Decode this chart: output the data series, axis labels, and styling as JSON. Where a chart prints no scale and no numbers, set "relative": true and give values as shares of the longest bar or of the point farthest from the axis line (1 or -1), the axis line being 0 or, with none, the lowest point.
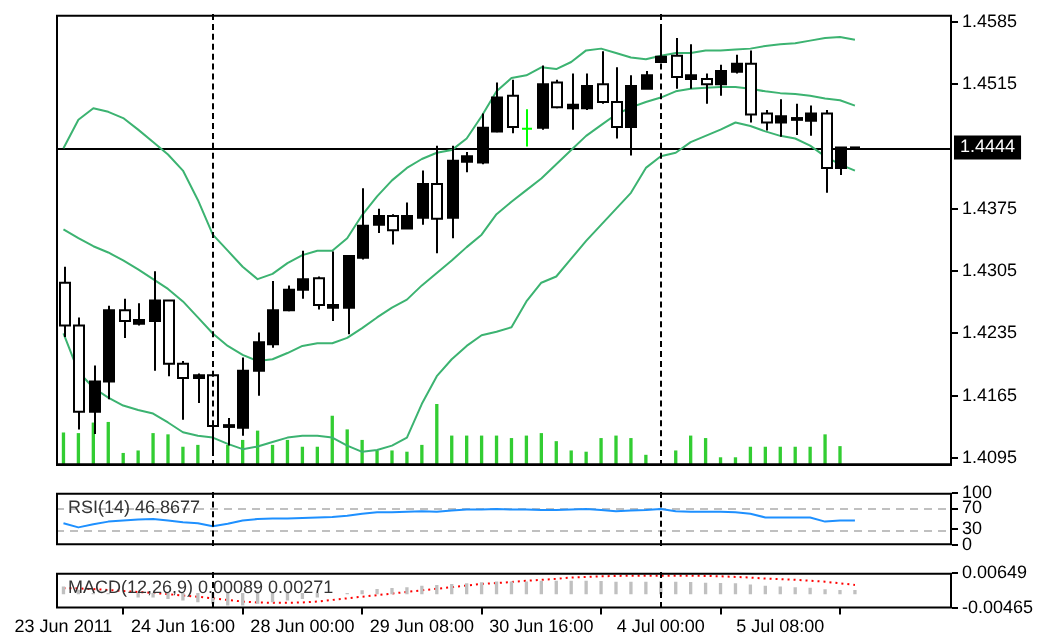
{
  "chart_data": [
    {
      "type": "candlestick",
      "categories": [
        null,
        null,
        null,
        null,
        null,
        null,
        null,
        null,
        null,
        null,
        null,
        null,
        null,
        null,
        null,
        null,
        null,
        null,
        null,
        null,
        null,
        null,
        null,
        null,
        null,
        null,
        null,
        null,
        null,
        null,
        null,
        null,
        null,
        null,
        null,
        null,
        null,
        null,
        null,
        null,
        null,
        null,
        null,
        null,
        null,
        null,
        null,
        null,
        null,
        null,
        null,
        null,
        null,
        null
      ],
      "series": [
        {
          "ohlc": [
            [
              1.4292,
              1.431,
              1.4231,
              1.4244
            ],
            [
              1.4244,
              1.4253,
              1.4127,
              1.4147
            ],
            [
              1.4147,
              1.4199,
              1.4122,
              1.4181
            ],
            [
              1.4181,
              1.4266,
              1.4161,
              1.4261
            ],
            [
              1.4261,
              1.4274,
              1.423,
              1.4249
            ],
            [
              1.4246,
              1.4269,
              1.4244,
              1.425
            ],
            [
              1.4249,
              1.4305,
              1.4193,
              1.4272
            ],
            [
              1.4272,
              1.4272,
              1.4187,
              1.4201
            ],
            [
              1.4201,
              1.4204,
              1.4138,
              1.4185
            ],
            [
              1.4185,
              1.419,
              1.4157,
              1.4188
            ],
            [
              1.4188,
              1.4188,
              1.4099,
              1.4131
            ],
            [
              1.413,
              1.414,
              1.4109,
              1.4132
            ],
            [
              1.4129,
              1.4208,
              1.412,
              1.4193
            ],
            [
              1.4193,
              1.4236,
              1.4165,
              1.4225
            ],
            [
              1.4223,
              1.4294,
              1.4219,
              1.4261
            ],
            [
              1.4261,
              1.4289,
              1.426,
              1.4284
            ],
            [
              1.4284,
              1.4328,
              1.4274,
              1.4296
            ],
            [
              1.4297,
              1.4299,
              1.4262,
              1.4267
            ],
            [
              1.4264,
              1.4327,
              1.4249,
              1.4267
            ],
            [
              1.4264,
              1.4322,
              1.4234,
              1.4322
            ],
            [
              1.432,
              1.4398,
              1.4318,
              1.4356
            ],
            [
              1.4357,
              1.4375,
              1.4348,
              1.4367
            ],
            [
              1.4367,
              1.4369,
              1.4335,
              1.4351
            ],
            [
              1.4353,
              1.4382,
              1.4353,
              1.4367
            ],
            [
              1.4365,
              1.4418,
              1.4357,
              1.4403
            ],
            [
              1.4403,
              1.4446,
              1.4325,
              1.4364
            ],
            [
              1.4365,
              1.4446,
              1.4342,
              1.4429
            ],
            [
              1.4428,
              1.4439,
              1.4416,
              1.4434
            ],
            [
              1.4427,
              1.4482,
              1.4425,
              1.4466
            ],
            [
              1.4462,
              1.4517,
              1.4461,
              1.45
            ],
            [
              1.4502,
              1.452,
              1.446,
              1.4467
            ],
            [
              1.4465,
              1.4487,
              1.4445,
              1.4465
            ],
            [
              1.4466,
              1.4536,
              1.4464,
              1.4515
            ],
            [
              1.4517,
              1.452,
              1.4488,
              1.4489
            ],
            [
              1.4488,
              1.4527,
              1.4464,
              1.4492
            ],
            [
              1.4488,
              1.4527,
              1.4486,
              1.4513
            ],
            [
              1.4515,
              1.4552,
              1.4493,
              1.4495
            ],
            [
              1.4495,
              1.4534,
              1.4454,
              1.4467
            ],
            [
              1.4467,
              1.4525,
              1.4435,
              1.4513
            ],
            [
              1.451,
              1.453,
              1.451,
              1.4525
            ],
            [
              1.454,
              1.4581,
              1.454,
              1.4546
            ],
            [
              1.4547,
              1.4567,
              1.451,
              1.4523
            ],
            [
              1.4521,
              1.456,
              1.451,
              1.4525
            ],
            [
              1.4521,
              1.4527,
              1.4493,
              1.4515
            ],
            [
              1.4515,
              1.4537,
              1.4502,
              1.453
            ],
            [
              1.4529,
              1.4548,
              1.4527,
              1.4538
            ],
            [
              1.4538,
              1.4553,
              1.4472,
              1.4481
            ],
            [
              1.4482,
              1.4486,
              1.4463,
              1.4472
            ],
            [
              1.4472,
              1.4498,
              1.4456,
              1.4479
            ],
            [
              1.4475,
              1.4493,
              1.4458,
              1.4477
            ],
            [
              1.4474,
              1.4491,
              1.4457,
              1.4482
            ],
            [
              1.4482,
              1.4486,
              1.4393,
              1.4421
            ],
            [
              1.4421,
              1.4444,
              1.4413,
              1.4444
            ],
            [
              1.4444,
              1.4444,
              1.4444,
              1.4444
            ]
          ],
          "colors": [
            "#ffffff",
            "#ffffff",
            "#000000",
            "#000000",
            "#ffffff",
            "#000000",
            "#000000",
            "#ffffff",
            "#ffffff",
            "#000000",
            "#ffffff",
            "#000000",
            "#000000",
            "#000000",
            "#000000",
            "#000000",
            "#000000",
            "#ffffff",
            "#000000",
            "#000000",
            "#000000",
            "#000000",
            "#ffffff",
            "#000000",
            "#000000",
            "#ffffff",
            "#000000",
            "#000000",
            "#000000",
            "#000000",
            "#ffffff",
            "#00ff00",
            "#000000",
            "#ffffff",
            "#000000",
            "#000000",
            "#ffffff",
            "#ffffff",
            "#000000",
            "#000000",
            "#000000",
            "#ffffff",
            "#000000",
            "#ffffff",
            "#000000",
            "#000000",
            "#ffffff",
            "#ffffff",
            "#000000",
            "#000000",
            "#000000",
            "#ffffff",
            "#000000",
            "#000000"
          ]
        },
        {
          "type": "line",
          "color": "#3cb371",
          "values": [
            1.4443,
            1.4475,
            1.4488,
            1.4484,
            1.4477,
            1.4464,
            1.445,
            1.4436,
            1.4418,
            1.4385,
            1.4346,
            1.4328,
            1.431,
            1.4296,
            1.4302,
            1.4314,
            1.4323,
            1.4328,
            1.4328,
            1.4342,
            1.4368,
            1.4389,
            1.4407,
            1.4421,
            1.4431,
            1.4438,
            1.4441,
            1.4454,
            1.4479,
            1.4507,
            1.4522,
            1.4525,
            1.4534,
            1.4532,
            1.454,
            1.4553,
            1.4555,
            1.455,
            1.4545,
            1.4543,
            1.4547,
            1.455,
            1.455,
            1.4553,
            1.4553,
            1.4554,
            1.4555,
            1.4558,
            1.456,
            1.4561,
            1.4564,
            1.4567,
            1.4568,
            1.4565
          ]
        },
        {
          "type": "line",
          "color": "#3cb371",
          "values": [
            1.4352,
            1.4342,
            1.4333,
            1.4326,
            1.4317,
            1.4307,
            1.4296,
            1.4285,
            1.4271,
            1.4253,
            1.4235,
            1.4221,
            1.4211,
            1.4204,
            1.4206,
            1.4213,
            1.4221,
            1.4224,
            1.4224,
            1.423,
            1.4241,
            1.4253,
            1.4264,
            1.4273,
            1.4289,
            1.4303,
            1.4317,
            1.4332,
            1.4346,
            1.4369,
            1.4383,
            1.4396,
            1.4409,
            1.4425,
            1.4441,
            1.4457,
            1.4469,
            1.4481,
            1.4489,
            1.4495,
            1.45,
            1.4507,
            1.451,
            1.4511,
            1.4512,
            1.4512,
            1.451,
            1.4507,
            1.4505,
            1.4504,
            1.4502,
            1.4499,
            1.4497,
            1.4491
          ]
        },
        {
          "type": "line",
          "color": "#3cb371",
          "values": [
            1.4235,
            1.4192,
            1.4174,
            1.4163,
            1.4154,
            1.4149,
            1.4145,
            1.4135,
            1.4124,
            1.412,
            1.4118,
            1.4111,
            1.4105,
            1.4108,
            1.4113,
            1.4118,
            1.412,
            1.412,
            1.4118,
            1.4109,
            1.4102,
            1.4104,
            1.4109,
            1.4118,
            1.4156,
            1.4187,
            1.4206,
            1.4221,
            1.4233,
            1.4237,
            1.4242,
            1.4271,
            1.4292,
            1.4299,
            1.4319,
            1.4339,
            1.4357,
            1.4375,
            1.4393,
            1.4421,
            1.4434,
            1.4438,
            1.445,
            1.4457,
            1.4464,
            1.4472,
            1.4468,
            1.4462,
            1.4457,
            1.4454,
            1.4446,
            1.4434,
            1.4425,
            1.4418
          ]
        }
      ],
      "ylim": [
        1.4087,
        1.4593
      ],
      "yticks": [
        1.4585,
        1.4515,
        1.4375,
        1.4305,
        1.4235,
        1.4165,
        1.4095
      ],
      "ref_lines": [
        {
          "axis": "y",
          "value": 1.4444,
          "label": "1.4444",
          "color": "#000000",
          "line_style": "solid"
        }
      ],
      "tick_labels": "y"
    },
    {
      "type": "bar",
      "relative": true,
      "color": "#32cd32",
      "categories": [
        null,
        null,
        null,
        null,
        null,
        null,
        null,
        null,
        null,
        null,
        null,
        null,
        null,
        null,
        null,
        null,
        null,
        null,
        null,
        null,
        null,
        null,
        null,
        null,
        null,
        null,
        null,
        null,
        null,
        null,
        null,
        null,
        null,
        null,
        null,
        null,
        null,
        null,
        null,
        null,
        null,
        null,
        null,
        null,
        null,
        null,
        null,
        null,
        null,
        null,
        null,
        null,
        null,
        null
      ],
      "values": [
        0.53,
        0.52,
        0.69,
        0.7,
        0.2,
        0.24,
        0.52,
        0.5,
        0.3,
        0.33,
        null,
        0.33,
        0.41,
        0.56,
        0.33,
        0.41,
        0.3,
        0.3,
        0.8,
        0.58,
        0.41,
        0.24,
        0.24,
        0.22,
        0.33,
        1,
        0.48,
        0.48,
        0.48,
        0.48,
        0.44,
        0.48,
        0.52,
        0.39,
        0.24,
        0.22,
        0.44,
        0.48,
        0.44,
        0.17,
        null,
        0.24,
        0.48,
        0.44,
        0.13,
        0.13,
        0.3,
        0.3,
        0.3,
        0.3,
        0.3,
        0.5,
        0.31,
        null
      ],
      "tick_labels": false
    },
    {
      "type": "line",
      "title": "RSI(14) 46.8677",
      "categories": [
        null,
        null,
        null,
        null,
        null,
        null,
        null,
        null,
        null,
        null,
        null,
        null,
        null,
        null,
        null,
        null,
        null,
        null,
        null,
        null,
        null,
        null,
        null,
        null,
        null,
        null,
        null,
        null,
        null,
        null,
        null,
        null,
        null,
        null,
        null,
        null,
        null,
        null,
        null,
        null,
        null,
        null,
        null,
        null,
        null,
        null,
        null,
        null,
        null,
        null,
        null,
        null,
        null,
        null
      ],
      "series": [
        {
          "color": "#1e90ff",
          "values": [
            42,
            34,
            40,
            45,
            47,
            49,
            50,
            47,
            44,
            42,
            36,
            41,
            47,
            50,
            51,
            51,
            52,
            53,
            54,
            56,
            60,
            63,
            63,
            64,
            65,
            64,
            66,
            68,
            68,
            69,
            68,
            68,
            67,
            67,
            68,
            69,
            67,
            65,
            66,
            67,
            69,
            65,
            64,
            64,
            64,
            63,
            60,
            53,
            53,
            53,
            53,
            45,
            47,
            47
          ]
        }
      ],
      "ylim": [
        0,
        100
      ],
      "yticks": [
        100,
        70,
        30,
        0
      ],
      "ref_lines": [
        {
          "axis": "y",
          "value": 70,
          "color": "#c0c0c0",
          "line_style": "dashed"
        },
        {
          "axis": "y",
          "value": 30,
          "color": "#c0c0c0",
          "line_style": "dashed"
        }
      ],
      "tick_labels": "y"
    },
    {
      "type": "bar",
      "title": "MACD(12,26,9) 0.00089 0.00271",
      "categories": [
        "23 Jun 2011",
        null,
        null,
        null,
        null,
        null,
        null,
        null,
        "24 Jun 16:00",
        null,
        null,
        null,
        null,
        null,
        null,
        null,
        "28 Jun 00:00",
        null,
        null,
        null,
        null,
        null,
        null,
        null,
        "29 Jun 08:00",
        null,
        null,
        null,
        null,
        null,
        null,
        null,
        "30 Jun 16:00",
        null,
        null,
        null,
        null,
        null,
        null,
        null,
        "4 Jul 00:00",
        null,
        null,
        null,
        null,
        null,
        null,
        null,
        "5 Jul 08:00",
        null,
        null,
        null,
        null,
        null
      ],
      "series": [
        {
          "color": "#c0c0c0",
          "values": [
            0.002,
            0.001,
            0,
            0,
            null,
            -0.001,
            -0.001,
            -0.0015,
            -0.002,
            -0.0025,
            -0.003,
            -0.0035,
            -0.0035,
            -0.003,
            -0.0025,
            -0.002,
            -0.0015,
            -0.001,
            null,
            0,
            0.0008,
            0.0012,
            0.0015,
            0.0018,
            0.0022,
            0.0025,
            0.0028,
            0.003,
            0.0033,
            0.0036,
            0.0036,
            0.0036,
            0.0038,
            0.0038,
            0.0038,
            0.0038,
            0.0037,
            0.0035,
            0.0035,
            0.0035,
            0.0036,
            0.0035,
            0.0034,
            0.0032,
            0.0031,
            0.003,
            0.0026,
            0.0022,
            0.002,
            0.0018,
            0.0016,
            0.0011,
            0.0009,
            0.0009
          ]
        },
        {
          "type": "line",
          "color": "#ff0000",
          "line_style": "dotted",
          "values": [
            0.0017,
            0.0016,
            0.0014,
            0.0011,
            0.0008,
            0.0005,
            0.0002,
            -0.0002,
            -0.0006,
            -0.001,
            -0.0015,
            -0.002,
            -0.0025,
            -0.0028,
            -0.0029,
            -0.0029,
            -0.0028,
            -0.0025,
            -0.002,
            -0.0015,
            -0.001,
            -0.0005,
            0,
            0.0005,
            0.001,
            0.0015,
            0.002,
            0.0025,
            0.003,
            0.0033,
            0.0036,
            0.004,
            0.0043,
            0.0046,
            0.005,
            0.0052,
            0.0054,
            0.0055,
            0.0056,
            0.0056,
            0.0056,
            0.0056,
            0.0056,
            0.0055,
            0.0054,
            0.0052,
            0.005,
            0.0047,
            0.0045,
            0.0043,
            0.004,
            0.0037,
            0.0032,
            0.0027
          ]
        }
      ],
      "ylim": [
        -0.00465,
        0.00649
      ],
      "yticks": [
        0.00649,
        -0.00465
      ]
    }
  ]
}
